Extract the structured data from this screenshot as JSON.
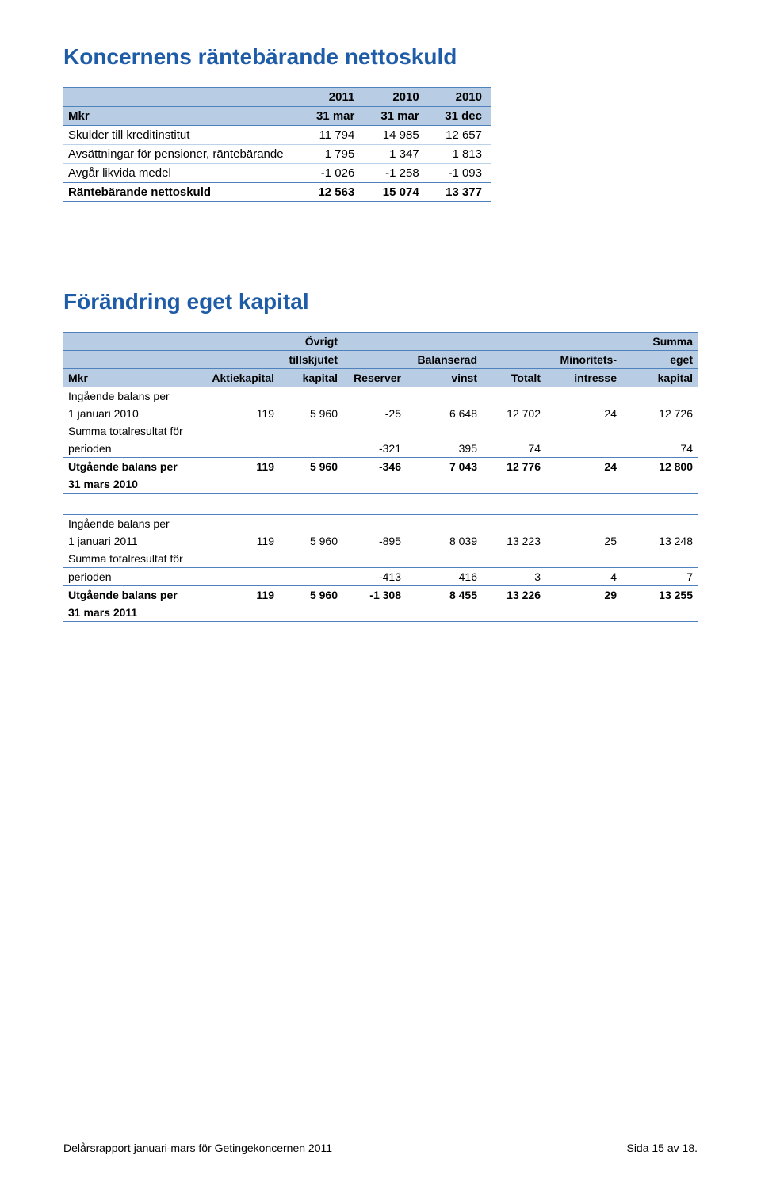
{
  "section1": {
    "title": "Koncernens räntebärande nettoskuld",
    "header_rows": [
      [
        "",
        "2011",
        "2010",
        "2010"
      ],
      [
        "Mkr",
        "31 mar",
        "31 mar",
        "31 dec"
      ]
    ],
    "rows": [
      {
        "label": "Skulder till kreditinstitut",
        "v": [
          "11 794",
          "14 985",
          "12 657"
        ]
      },
      {
        "label": "Avsättningar för pensioner, räntebärande",
        "v": [
          "1 795",
          "1 347",
          "1 813"
        ]
      },
      {
        "label": "Avgår likvida medel",
        "v": [
          "-1 026",
          "-1 258",
          "-1 093"
        ]
      }
    ],
    "total": {
      "label": "Räntebärande nettoskuld",
      "v": [
        "12 563",
        "15 074",
        "13 377"
      ]
    }
  },
  "section2": {
    "title": "Förändring eget kapital",
    "header_rows": [
      [
        "",
        "",
        "Övrigt",
        "",
        "",
        "",
        "",
        "Summa"
      ],
      [
        "",
        "",
        "tillskjutet",
        "",
        "Balanserad",
        "",
        "Minoritets-",
        "eget"
      ],
      [
        "Mkr",
        "Aktiekapital",
        "kapital",
        "Reserver",
        "vinst",
        "Totalt",
        "intresse",
        "kapital"
      ]
    ],
    "block1": {
      "opening_label": "Ingående balans per",
      "opening_date": "1 januari 2010",
      "opening": [
        "119",
        "5 960",
        "-25",
        "6 648",
        "12 702",
        "24",
        "12 726"
      ],
      "result_label1": "Summa totalresultat för",
      "result_label2": "perioden",
      "result": [
        "",
        "",
        "-321",
        "395",
        "74",
        "",
        "74"
      ],
      "closing_label": "Utgående balans per",
      "closing_date": "31 mars 2010",
      "closing": [
        "119",
        "5 960",
        "-346",
        "7 043",
        "12 776",
        "24",
        "12 800"
      ]
    },
    "block2": {
      "opening_label": "Ingående balans per",
      "opening_date": "1 januari 2011",
      "opening": [
        "119",
        "5 960",
        "-895",
        "8 039",
        "13 223",
        "25",
        "13 248"
      ],
      "result_label1": "Summa totalresultat för",
      "result_label2": "perioden",
      "result": [
        "",
        "",
        "-413",
        "416",
        "3",
        "4",
        "7"
      ],
      "closing_label": "Utgående balans per",
      "closing_date": "31 mars 2011",
      "closing": [
        "119",
        "5 960",
        "-1 308",
        "8 455",
        "13 226",
        "29",
        "13 255"
      ]
    }
  },
  "footer": {
    "left": "Delårsrapport januari-mars för Getingekoncernen 2011",
    "right": "Sida 15 av 18."
  },
  "colors": {
    "title": "#1f5ca8",
    "header_bg": "#b8cce4",
    "rule": "#4f81bd",
    "light_rule": "#bcd2e8"
  }
}
